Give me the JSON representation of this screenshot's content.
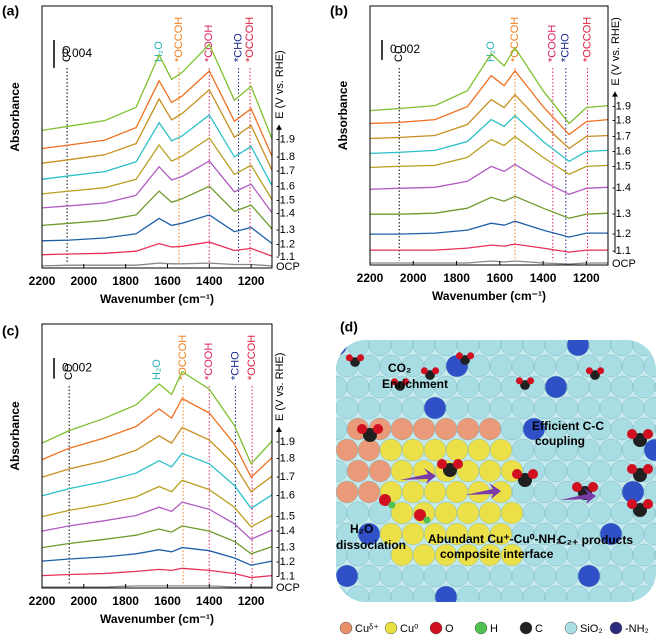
{
  "chart_data": [
    {
      "type": "line",
      "panel_label": "(a)",
      "xlabel": "Wavenumber (cm⁻¹)",
      "ylabel": "Absorbance",
      "right_label": "E (V vs. RHE)",
      "xlim": [
        2200,
        1100
      ],
      "ylim": [
        0,
        0.0375
      ],
      "xticks": [
        2200,
        2000,
        1800,
        1600,
        1400,
        1200
      ],
      "scale_bar": 0.004,
      "x": [
        2200,
        2070,
        1900,
        1750,
        1640,
        1580,
        1530,
        1400,
        1280,
        1200,
        1100
      ],
      "series": [
        {
          "name": "OCP",
          "color": "#888888",
          "values": [
            0.0003,
            0.0004,
            0.0004,
            0.0004,
            0.0007,
            0.0006,
            0.0006,
            0.0007,
            0.0005,
            0.0005,
            0.0003
          ]
        },
        {
          "name": "-1.1",
          "color": "#e8305a",
          "values": [
            0.0019,
            0.002,
            0.0021,
            0.0024,
            0.0035,
            0.003,
            0.0031,
            0.0037,
            0.0025,
            0.0028,
            0.0017
          ]
        },
        {
          "name": "-1.2",
          "color": "#1f5fa8",
          "values": [
            0.0039,
            0.004,
            0.0043,
            0.0049,
            0.0071,
            0.0061,
            0.0064,
            0.0076,
            0.0052,
            0.0058,
            0.0035
          ]
        },
        {
          "name": "-1.3",
          "color": "#6f9a2a",
          "values": [
            0.0061,
            0.0064,
            0.0068,
            0.0076,
            0.011,
            0.0094,
            0.0099,
            0.0117,
            0.0081,
            0.009,
            0.0056
          ]
        },
        {
          "name": "-1.4",
          "color": "#b05cc0",
          "values": [
            0.0086,
            0.0089,
            0.0093,
            0.0104,
            0.0145,
            0.0126,
            0.0131,
            0.0153,
            0.0109,
            0.012,
            0.0079
          ]
        },
        {
          "name": "-1.5",
          "color": "#b8a020",
          "values": [
            0.0106,
            0.011,
            0.0115,
            0.0127,
            0.0176,
            0.0153,
            0.016,
            0.0186,
            0.0134,
            0.0147,
            0.0098
          ]
        },
        {
          "name": "-1.6",
          "color": "#2bc0c8",
          "values": [
            0.0127,
            0.0132,
            0.0138,
            0.0152,
            0.0208,
            0.0182,
            0.0189,
            0.0219,
            0.0159,
            0.0174,
            0.0118
          ]
        },
        {
          "name": "-1.7",
          "color": "#c89020",
          "values": [
            0.015,
            0.0155,
            0.0162,
            0.0178,
            0.0242,
            0.0212,
            0.0221,
            0.0255,
            0.0187,
            0.0204,
            0.014
          ]
        },
        {
          "name": "-1.8",
          "color": "#f07020",
          "values": [
            0.0171,
            0.0176,
            0.0183,
            0.0201,
            0.0268,
            0.0237,
            0.0246,
            0.0282,
            0.021,
            0.0228,
            0.016
          ]
        },
        {
          "name": "-1.9",
          "color": "#80c030",
          "values": [
            0.0197,
            0.0203,
            0.0211,
            0.023,
            0.0305,
            0.027,
            0.028,
            0.032,
            0.024,
            0.026,
            0.0185
          ]
        }
      ],
      "annotations": [
        {
          "label": "CO",
          "x": 2080,
          "color": "#000000"
        },
        {
          "label": "H₂O",
          "x": 1640,
          "color": "#2bb0b8"
        },
        {
          "label": "*OCCOH",
          "x": 1545,
          "color": "#f08020"
        },
        {
          "label": "*COOH",
          "x": 1400,
          "color": "#e0206a"
        },
        {
          "label": "*CHO",
          "x": 1260,
          "color": "#1a2a8a"
        },
        {
          "label": "*OCCOH",
          "x": 1205,
          "color": "#e02040"
        }
      ]
    },
    {
      "type": "line",
      "panel_label": "(b)",
      "xlabel": "Wavenumber (cm⁻¹)",
      "ylabel": "Absorbance",
      "right_label": "E (V vs. RHE)",
      "xlim": [
        2200,
        1100
      ],
      "ylim": [
        0,
        0.026
      ],
      "xticks": [
        2200,
        2000,
        1800,
        1600,
        1400,
        1200
      ],
      "scale_bar": 0.002,
      "x": [
        2200,
        2070,
        1900,
        1750,
        1640,
        1580,
        1530,
        1400,
        1280,
        1200,
        1100
      ],
      "series": [
        {
          "name": "OCP",
          "color": "#888888",
          "values": [
            0.0002,
            0.0002,
            0.0002,
            0.0002,
            0.0004,
            0.0003,
            0.0004,
            0.0002,
            0.0001,
            0.0002,
            0.0002
          ]
        },
        {
          "name": "-1.1",
          "color": "#e8305a",
          "values": [
            0.0015,
            0.0015,
            0.0015,
            0.0017,
            0.002,
            0.0019,
            0.0021,
            0.0017,
            0.0013,
            0.0015,
            0.0015
          ]
        },
        {
          "name": "-1.2",
          "color": "#1f5fa8",
          "values": [
            0.0031,
            0.0031,
            0.0032,
            0.0035,
            0.0042,
            0.004,
            0.0044,
            0.0035,
            0.0028,
            0.0032,
            0.0032
          ]
        },
        {
          "name": "-1.3",
          "color": "#6f9a2a",
          "values": [
            0.0051,
            0.0051,
            0.0052,
            0.0057,
            0.0068,
            0.0064,
            0.0069,
            0.0057,
            0.0047,
            0.0051,
            0.0052
          ]
        },
        {
          "name": "-1.4",
          "color": "#b05cc0",
          "values": [
            0.0076,
            0.0077,
            0.0078,
            0.0084,
            0.0099,
            0.0094,
            0.0101,
            0.0084,
            0.0071,
            0.0077,
            0.0078
          ]
        },
        {
          "name": "-1.5",
          "color": "#b8a020",
          "values": [
            0.0098,
            0.0099,
            0.01,
            0.0108,
            0.0126,
            0.012,
            0.0129,
            0.0108,
            0.0091,
            0.0099,
            0.01
          ]
        },
        {
          "name": "-1.6",
          "color": "#2bc0c8",
          "values": [
            0.0112,
            0.0113,
            0.0115,
            0.0124,
            0.0146,
            0.0139,
            0.015,
            0.0124,
            0.0104,
            0.0114,
            0.0115
          ]
        },
        {
          "name": "-1.7",
          "color": "#c89020",
          "values": [
            0.0127,
            0.0128,
            0.013,
            0.0141,
            0.0166,
            0.0158,
            0.0171,
            0.0141,
            0.0117,
            0.0129,
            0.013
          ]
        },
        {
          "name": "-1.8",
          "color": "#f07020",
          "values": [
            0.0142,
            0.0143,
            0.0146,
            0.0159,
            0.019,
            0.018,
            0.0195,
            0.0159,
            0.0131,
            0.0144,
            0.0146
          ]
        },
        {
          "name": "-1.9",
          "color": "#80c030",
          "values": [
            0.0155,
            0.0157,
            0.016,
            0.0175,
            0.0212,
            0.02,
            0.0218,
            0.0175,
            0.0142,
            0.0158,
            0.016
          ]
        }
      ],
      "annotations": [
        {
          "label": "CO",
          "x": 2065,
          "color": "#000000"
        },
        {
          "label": "H₂O",
          "x": 1640,
          "color": "#2bb0b8"
        },
        {
          "label": "*OCCOH",
          "x": 1530,
          "color": "#f08020"
        },
        {
          "label": "*COOH",
          "x": 1355,
          "color": "#e0206a"
        },
        {
          "label": "*CHO",
          "x": 1295,
          "color": "#1a2a8a"
        },
        {
          "label": "*OCCOH",
          "x": 1195,
          "color": "#e02040"
        }
      ]
    },
    {
      "type": "line",
      "panel_label": "(c)",
      "xlabel": "Wavenumber (cm⁻¹)",
      "ylabel": "Absorbance",
      "right_label": "E (V vs. RHE)",
      "xlim": [
        2200,
        1100
      ],
      "ylim": [
        0,
        0.0255
      ],
      "xticks": [
        2200,
        2000,
        1800,
        1600,
        1400,
        1200
      ],
      "scale_bar": 0.002,
      "x": [
        2200,
        2070,
        1900,
        1750,
        1640,
        1580,
        1530,
        1400,
        1280,
        1200,
        1100
      ],
      "series": [
        {
          "name": "OCP",
          "color": "#888888",
          "values": [
            0.0001,
            0.0001,
            0.0001,
            0.0002,
            0.0002,
            0.0002,
            0.0002,
            0.0002,
            0.0001,
            0.0001,
            0.0001
          ]
        },
        {
          "name": "-1.1",
          "color": "#e8305a",
          "values": [
            0.0012,
            0.0013,
            0.0014,
            0.0016,
            0.0018,
            0.0017,
            0.0019,
            0.0017,
            0.0014,
            0.001,
            0.0012
          ]
        },
        {
          "name": "-1.2",
          "color": "#1f5fa8",
          "values": [
            0.0026,
            0.0028,
            0.003,
            0.0033,
            0.0037,
            0.0035,
            0.0039,
            0.0036,
            0.0029,
            0.0022,
            0.0026
          ]
        },
        {
          "name": "-1.3",
          "color": "#6f9a2a",
          "values": [
            0.0039,
            0.0043,
            0.0047,
            0.0051,
            0.0057,
            0.0054,
            0.006,
            0.0055,
            0.0045,
            0.0033,
            0.004
          ]
        },
        {
          "name": "-1.4",
          "color": "#b05cc0",
          "values": [
            0.0055,
            0.006,
            0.0065,
            0.007,
            0.0078,
            0.0074,
            0.0083,
            0.0076,
            0.0062,
            0.0047,
            0.0056
          ]
        },
        {
          "name": "-1.5",
          "color": "#b8a020",
          "values": [
            0.0069,
            0.0075,
            0.0081,
            0.0088,
            0.0098,
            0.0093,
            0.0104,
            0.0095,
            0.0078,
            0.0059,
            0.007
          ]
        },
        {
          "name": "-1.6",
          "color": "#2bc0c8",
          "values": [
            0.0089,
            0.0096,
            0.0103,
            0.0111,
            0.0123,
            0.0117,
            0.013,
            0.012,
            0.0099,
            0.0077,
            0.009
          ]
        },
        {
          "name": "-1.7",
          "color": "#c89020",
          "values": [
            0.0107,
            0.0115,
            0.0123,
            0.0133,
            0.0147,
            0.014,
            0.0155,
            0.0143,
            0.0119,
            0.0093,
            0.0108
          ]
        },
        {
          "name": "-1.8",
          "color": "#f07020",
          "values": [
            0.0124,
            0.0135,
            0.0145,
            0.0156,
            0.0173,
            0.0164,
            0.0183,
            0.0169,
            0.0139,
            0.0107,
            0.0126
          ]
        },
        {
          "name": "-1.9",
          "color": "#80c030",
          "values": [
            0.014,
            0.0152,
            0.0164,
            0.0177,
            0.0197,
            0.0187,
            0.0209,
            0.0192,
            0.0157,
            0.012,
            0.0142
          ]
        }
      ],
      "annotations": [
        {
          "label": "CO",
          "x": 2070,
          "color": "#000000"
        },
        {
          "label": "H₂O",
          "x": 1650,
          "color": "#2bb0b8"
        },
        {
          "label": "*OCCOH",
          "x": 1525,
          "color": "#f08020"
        },
        {
          "label": "*COOH",
          "x": 1400,
          "color": "#e0206a"
        },
        {
          "label": "*CHO",
          "x": 1275,
          "color": "#1a2a8a"
        },
        {
          "label": "*OCCOH",
          "x": 1195,
          "color": "#e02040"
        }
      ]
    }
  ],
  "schematic": {
    "panel_label": "(d)",
    "labels": [
      "CO₂",
      "Enrichment",
      "Efficient C-C",
      "coupling",
      "H₂O",
      "dissociation",
      "Abundant Cu⁺-Cu⁰-NH₂",
      "composite interface",
      "C₂₊ products"
    ],
    "legend": [
      {
        "label": "Cuᵟ⁺",
        "color": "#e8906a"
      },
      {
        "label": "Cu⁰",
        "color": "#e8e040"
      },
      {
        "label": "O",
        "color": "#d01020"
      },
      {
        "label": "H",
        "color": "#50c050"
      },
      {
        "label": "C",
        "color": "#202020"
      },
      {
        "label": "SiO₂",
        "color": "#a8e0e4"
      },
      {
        "label": "-NH₂",
        "color": "#2a2a80"
      }
    ]
  }
}
